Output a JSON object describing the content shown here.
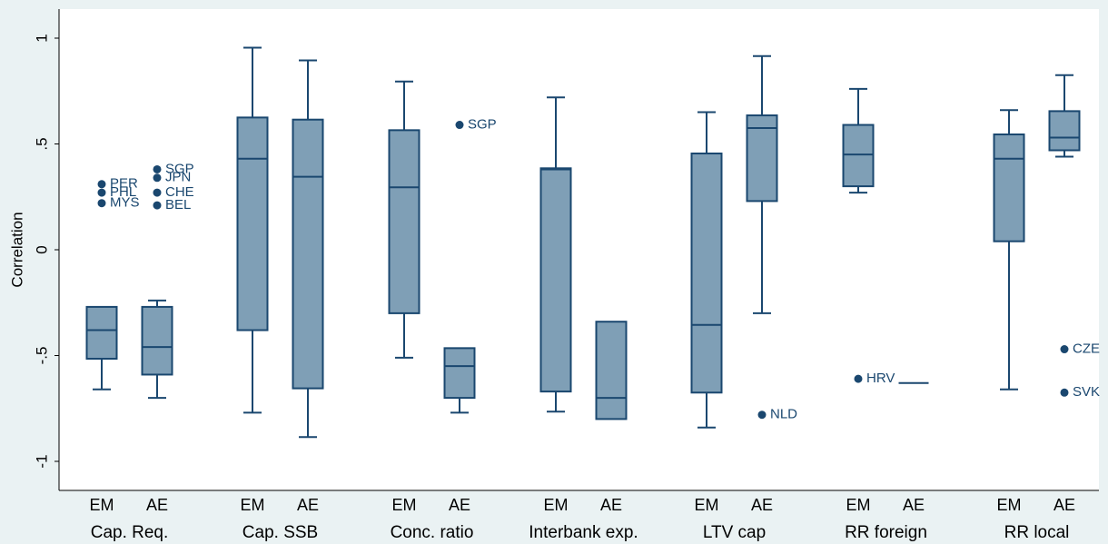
{
  "chart_data": {
    "type": "box",
    "ylabel": "Correlation",
    "ylim": [
      -1.1,
      1.1
    ],
    "yticks": [
      -1,
      -0.5,
      0,
      0.5,
      1
    ],
    "ytick_labels": [
      "-1",
      "-.5",
      "0",
      ".5",
      "1"
    ],
    "grid": false,
    "categories": [
      "Cap. Req.",
      "Cap. SSB",
      "Conc. ratio",
      "Interbank exp.",
      "LTV cap",
      "RR foreign",
      "RR local"
    ],
    "groups": [
      "EM",
      "AE"
    ],
    "boxes": [
      {
        "category": "Cap. Req.",
        "group": "EM",
        "lower_whisker": -0.66,
        "q1": -0.515,
        "median": -0.38,
        "q3": -0.27,
        "upper_whisker": -0.27,
        "outliers": [
          {
            "value": 0.31,
            "label": "PER"
          },
          {
            "value": 0.27,
            "label": "PHL"
          },
          {
            "value": 0.22,
            "label": "MYS"
          }
        ]
      },
      {
        "category": "Cap. Req.",
        "group": "AE",
        "lower_whisker": -0.7,
        "q1": -0.59,
        "median": -0.46,
        "q3": -0.27,
        "upper_whisker": -0.24,
        "outliers": [
          {
            "value": 0.38,
            "label": "SGP"
          },
          {
            "value": 0.34,
            "label": "JPN"
          },
          {
            "value": 0.27,
            "label": "CHE"
          },
          {
            "value": 0.21,
            "label": "BEL"
          }
        ]
      },
      {
        "category": "Cap. SSB",
        "group": "EM",
        "lower_whisker": -0.77,
        "q1": -0.38,
        "median": 0.43,
        "q3": 0.625,
        "upper_whisker": 0.955,
        "outliers": []
      },
      {
        "category": "Cap. SSB",
        "group": "AE",
        "lower_whisker": -0.885,
        "q1": -0.655,
        "median": 0.345,
        "q3": 0.615,
        "upper_whisker": 0.895,
        "outliers": []
      },
      {
        "category": "Conc. ratio",
        "group": "EM",
        "lower_whisker": -0.51,
        "q1": -0.3,
        "median": 0.295,
        "q3": 0.565,
        "upper_whisker": 0.795,
        "outliers": []
      },
      {
        "category": "Conc. ratio",
        "group": "AE",
        "lower_whisker": -0.77,
        "q1": -0.7,
        "median": -0.55,
        "q3": -0.465,
        "upper_whisker": -0.465,
        "outliers": [
          {
            "value": 0.59,
            "label": "SGP"
          }
        ]
      },
      {
        "category": "Interbank exp.",
        "group": "EM",
        "lower_whisker": -0.765,
        "q1": -0.67,
        "median": 0.38,
        "q3": 0.385,
        "upper_whisker": 0.72,
        "outliers": []
      },
      {
        "category": "Interbank exp.",
        "group": "AE",
        "lower_whisker": -0.8,
        "q1": -0.8,
        "median": -0.7,
        "q3": -0.34,
        "upper_whisker": -0.34,
        "outliers": []
      },
      {
        "category": "LTV cap",
        "group": "EM",
        "lower_whisker": -0.84,
        "q1": -0.675,
        "median": -0.355,
        "q3": 0.455,
        "upper_whisker": 0.65,
        "outliers": []
      },
      {
        "category": "LTV cap",
        "group": "AE",
        "lower_whisker": -0.3,
        "q1": 0.23,
        "median": 0.575,
        "q3": 0.635,
        "upper_whisker": 0.915,
        "outliers": [
          {
            "value": -0.78,
            "label": "NLD"
          }
        ]
      },
      {
        "category": "RR foreign",
        "group": "EM",
        "lower_whisker": 0.27,
        "q1": 0.3,
        "median": 0.45,
        "q3": 0.59,
        "upper_whisker": 0.76,
        "outliers": [
          {
            "value": -0.61,
            "label": "HRV"
          }
        ]
      },
      {
        "category": "RR foreign",
        "group": "AE",
        "lower_whisker": -0.63,
        "q1": -0.63,
        "median": -0.63,
        "q3": -0.63,
        "upper_whisker": -0.63,
        "outliers": []
      },
      {
        "category": "RR local",
        "group": "EM",
        "lower_whisker": -0.66,
        "q1": 0.04,
        "median": 0.43,
        "q3": 0.545,
        "upper_whisker": 0.66,
        "outliers": []
      },
      {
        "category": "RR local",
        "group": "AE",
        "lower_whisker": 0.44,
        "q1": 0.47,
        "median": 0.53,
        "q3": 0.655,
        "upper_whisker": 0.825,
        "outliers": [
          {
            "value": -0.47,
            "label": "CZE"
          },
          {
            "value": -0.675,
            "label": "SVK"
          }
        ]
      }
    ],
    "colors": {
      "box_fill": "#7f9fb6",
      "stroke": "#1a476f",
      "plot_bg": "#ffffff",
      "outer_bg": "#eaf2f3"
    }
  }
}
